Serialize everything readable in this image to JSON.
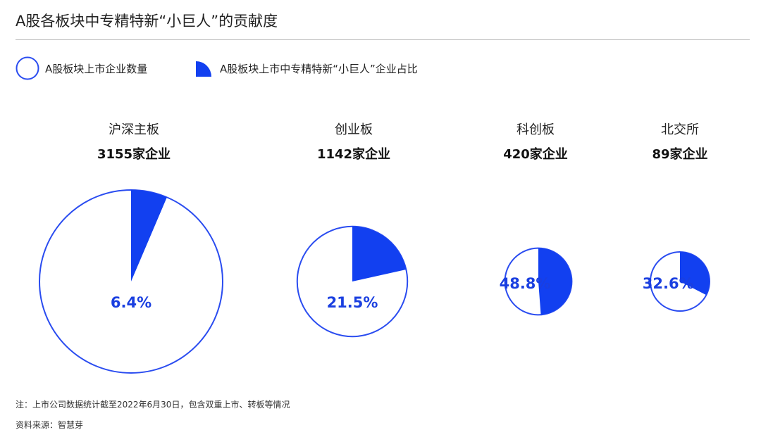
{
  "title": "A股各板块中专精特新“小巨人”的贡献度",
  "legend": {
    "total": "A股板块上市企业数量",
    "share": "A股板块上市中专精特新“小巨人”企业占比"
  },
  "colors": {
    "accent": "#1240f0",
    "outline": "#2a4cf0"
  },
  "chart_data": {
    "type": "pie",
    "series": [
      {
        "board": "沪深主板",
        "count_label": "3155家企业",
        "count": 3155,
        "share_pct": 6.4,
        "pct_label": "6.4%"
      },
      {
        "board": "创业板",
        "count_label": "1142家企业",
        "count": 1142,
        "share_pct": 21.5,
        "pct_label": "21.5%"
      },
      {
        "board": "科创板",
        "count_label": "420家企业",
        "count": 420,
        "share_pct": 48.8,
        "pct_label": "48.8%"
      },
      {
        "board": "北交所",
        "count_label": "89家企业",
        "count": 89,
        "share_pct": 32.6,
        "pct_label": "32.6%"
      }
    ]
  },
  "footnotes": {
    "note": "注：上市公司数据统计截至2022年6月30日，包含双重上市、转板等情况",
    "source": "资料来源：智慧芽"
  }
}
